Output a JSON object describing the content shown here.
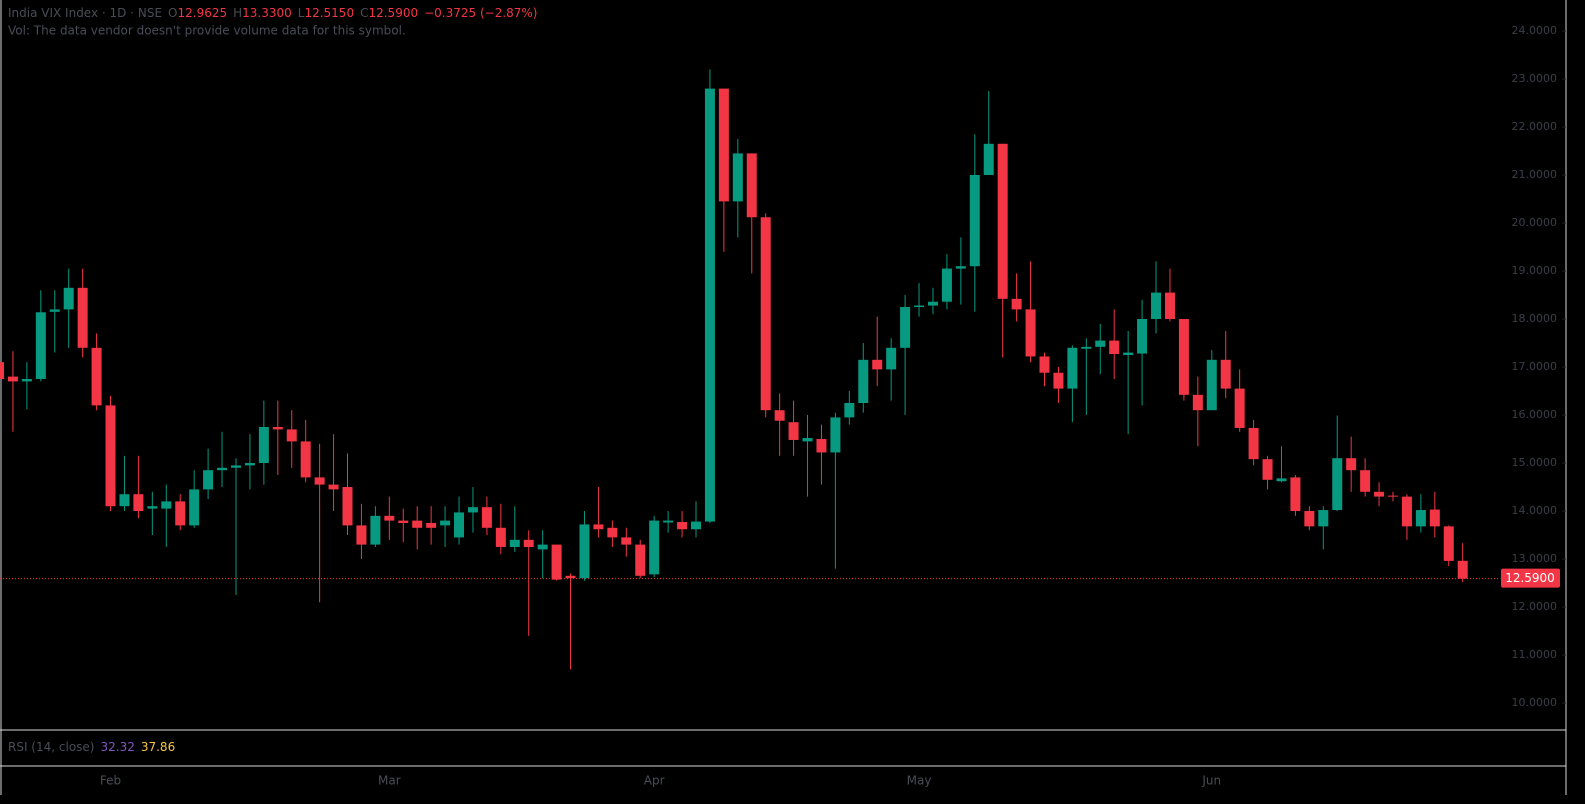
{
  "header": {
    "symbol": "India VIX Index · 1D · NSE",
    "ohlc": [
      {
        "key": "O",
        "value": "12.9625"
      },
      {
        "key": "H",
        "value": "13.3300"
      },
      {
        "key": "L",
        "value": "12.5150"
      },
      {
        "key": "C",
        "value": "12.5900"
      }
    ],
    "change": "−0.3725 (−2.87%)",
    "volume_note": "Vol: The data vendor doesn't provide volume data for this symbol."
  },
  "rsi": {
    "label": "RSI (14, close)",
    "values": [
      "32.32",
      "37.86"
    ]
  },
  "chart_data": {
    "type": "candlestick",
    "up_color": "#089981",
    "down_color": "#f23645",
    "categories": [
      null,
      null,
      null,
      null,
      null,
      null,
      null,
      null,
      "Feb",
      null,
      null,
      null,
      null,
      null,
      null,
      null,
      null,
      null,
      null,
      null,
      null,
      null,
      null,
      null,
      null,
      null,
      null,
      null,
      "Mar",
      null,
      null,
      null,
      null,
      null,
      null,
      null,
      null,
      null,
      null,
      null,
      null,
      null,
      null,
      null,
      null,
      null,
      null,
      "Apr",
      null,
      null,
      null,
      null,
      null,
      null,
      null,
      null,
      null,
      null,
      null,
      null,
      null,
      null,
      null,
      null,
      null,
      null,
      "May",
      null,
      null,
      null,
      null,
      null,
      null,
      null,
      null,
      null,
      null,
      null,
      null,
      null,
      null,
      null,
      null,
      null,
      null,
      null,
      null,
      "Jun",
      null,
      null,
      null,
      null,
      null,
      null,
      null,
      null,
      null,
      null,
      null,
      null,
      null,
      null,
      null,
      null,
      null,
      null
    ],
    "open": [
      17.1,
      16.8,
      16.7,
      16.75,
      18.15,
      18.2,
      18.65,
      17.4,
      16.2,
      14.1,
      14.35,
      14.05,
      14.05,
      14.2,
      13.7,
      14.45,
      14.85,
      14.9,
      14.95,
      15.0,
      15.75,
      15.7,
      15.45,
      14.7,
      14.55,
      14.5,
      13.7,
      13.3,
      13.9,
      13.8,
      13.8,
      13.75,
      13.7,
      13.45,
      13.97,
      14.08,
      13.65,
      13.25,
      13.4,
      13.2,
      13.3,
      12.65,
      12.6,
      13.72,
      13.65,
      13.45,
      13.3,
      12.68,
      13.76,
      13.77,
      13.62,
      13.78,
      22.8,
      20.45,
      21.45,
      20.12,
      16.1,
      15.85,
      15.45,
      15.5,
      15.22,
      15.95,
      16.25,
      17.15,
      16.95,
      17.4,
      18.25,
      18.28,
      18.36,
      19.05,
      19.1,
      21.0,
      21.65,
      18.42,
      18.2,
      17.22,
      16.88,
      16.55,
      17.38,
      17.42,
      17.55,
      17.25,
      17.28,
      18.0,
      18.55,
      18.0,
      16.42,
      16.1,
      17.15,
      16.55,
      15.73,
      15.08,
      14.62,
      14.7,
      14.0,
      13.68,
      14.02,
      15.1,
      14.85,
      14.4,
      14.32,
      14.3,
      13.68,
      14.03,
      13.68,
      12.9625
    ],
    "high": [
      17.1,
      17.33,
      17.1,
      18.6,
      18.6,
      19.05,
      19.05,
      17.7,
      16.4,
      15.15,
      15.15,
      14.4,
      14.55,
      14.35,
      14.85,
      15.3,
      15.65,
      15.1,
      15.6,
      16.3,
      16.3,
      16.1,
      15.9,
      15.4,
      15.6,
      15.2,
      14.15,
      14.1,
      14.3,
      14.05,
      14.1,
      14.1,
      14.1,
      14.3,
      14.5,
      14.3,
      14.15,
      14.1,
      13.6,
      13.6,
      13.3,
      12.7,
      14.0,
      14.5,
      13.8,
      13.65,
      13.4,
      13.9,
      14.0,
      14.0,
      14.2,
      23.2,
      22.8,
      21.75,
      21.45,
      20.2,
      16.45,
      16.3,
      16.0,
      15.8,
      16.05,
      16.5,
      17.5,
      18.05,
      17.6,
      18.5,
      18.75,
      18.65,
      19.35,
      19.7,
      21.85,
      22.75,
      21.65,
      18.95,
      19.2,
      17.3,
      17.0,
      17.45,
      17.6,
      17.9,
      18.2,
      17.75,
      18.4,
      19.2,
      19.05,
      18.0,
      16.8,
      17.35,
      17.75,
      16.95,
      15.9,
      15.15,
      15.35,
      14.75,
      14.1,
      14.1,
      15.99,
      15.55,
      15.1,
      14.6,
      14.4,
      14.35,
      14.35,
      14.4,
      13.7,
      13.33
    ],
    "low": [
      16.6,
      15.65,
      16.12,
      16.7,
      17.3,
      17.4,
      17.2,
      16.1,
      14.0,
      14.0,
      13.85,
      13.5,
      13.25,
      13.6,
      13.65,
      14.25,
      14.5,
      12.25,
      14.45,
      14.55,
      14.75,
      14.9,
      14.6,
      12.1,
      14.0,
      13.5,
      13.0,
      13.25,
      13.4,
      13.35,
      13.2,
      13.3,
      13.25,
      13.3,
      13.55,
      13.5,
      13.1,
      13.15,
      11.4,
      12.6,
      12.55,
      10.7,
      12.55,
      13.45,
      13.25,
      13.05,
      12.6,
      12.62,
      13.55,
      13.45,
      13.45,
      13.75,
      19.4,
      19.7,
      18.95,
      15.95,
      15.15,
      15.15,
      14.3,
      14.55,
      12.8,
      15.8,
      16.05,
      16.6,
      16.3,
      16.0,
      18.05,
      18.1,
      18.2,
      18.3,
      18.15,
      21.0,
      17.2,
      17.95,
      17.1,
      16.6,
      16.25,
      15.85,
      16.0,
      16.85,
      16.75,
      15.6,
      16.2,
      17.7,
      17.95,
      16.3,
      15.35,
      16.1,
      16.35,
      15.65,
      14.95,
      14.45,
      14.6,
      13.9,
      13.6,
      13.2,
      14.0,
      14.4,
      14.3,
      14.1,
      14.2,
      13.4,
      13.55,
      13.45,
      12.85,
      12.515
    ],
    "close": [
      16.75,
      16.7,
      16.75,
      18.14,
      18.2,
      18.65,
      17.4,
      16.2,
      14.1,
      14.35,
      14.0,
      14.1,
      14.2,
      13.7,
      14.45,
      14.85,
      14.9,
      14.95,
      15.0,
      15.75,
      15.7,
      15.45,
      14.7,
      14.55,
      14.45,
      13.7,
      13.3,
      13.9,
      13.8,
      13.75,
      13.65,
      13.65,
      13.8,
      13.97,
      14.08,
      13.65,
      13.25,
      13.4,
      13.25,
      13.3,
      12.57,
      12.6,
      13.72,
      13.62,
      13.45,
      13.3,
      12.65,
      13.8,
      13.8,
      13.62,
      13.78,
      22.8,
      20.45,
      21.45,
      20.12,
      16.1,
      15.88,
      15.48,
      15.52,
      15.22,
      15.95,
      16.25,
      17.15,
      16.95,
      17.4,
      18.25,
      18.28,
      18.36,
      19.05,
      19.1,
      21.0,
      21.65,
      18.42,
      18.2,
      17.22,
      16.88,
      16.55,
      17.4,
      17.42,
      17.55,
      17.27,
      17.3,
      18.0,
      18.55,
      18.0,
      16.42,
      16.1,
      17.15,
      16.55,
      15.73,
      15.08,
      14.65,
      14.68,
      14.0,
      13.68,
      14.02,
      15.1,
      14.85,
      14.4,
      14.3,
      14.3,
      13.68,
      14.02,
      13.68,
      12.96,
      12.59
    ],
    "last_price": {
      "value": 12.59,
      "label": "12.5900"
    },
    "ylim": [
      9.6,
      24.6
    ],
    "yticks": [
      {
        "value": 10,
        "label": "10.0000"
      },
      {
        "value": 11,
        "label": "11.0000"
      },
      {
        "value": 12,
        "label": "12.0000"
      },
      {
        "value": 13,
        "label": "13.0000"
      },
      {
        "value": 14,
        "label": "14.0000"
      },
      {
        "value": 15,
        "label": "15.0000"
      },
      {
        "value": 16,
        "label": "16.0000"
      },
      {
        "value": 17,
        "label": "17.0000"
      },
      {
        "value": 18,
        "label": "18.0000"
      },
      {
        "value": 19,
        "label": "19.0000"
      },
      {
        "value": 20,
        "label": "20.0000"
      },
      {
        "value": 21,
        "label": "21.0000"
      },
      {
        "value": 22,
        "label": "22.0000"
      },
      {
        "value": 23,
        "label": "23.0000"
      },
      {
        "value": 24,
        "label": "24.0000"
      }
    ]
  }
}
